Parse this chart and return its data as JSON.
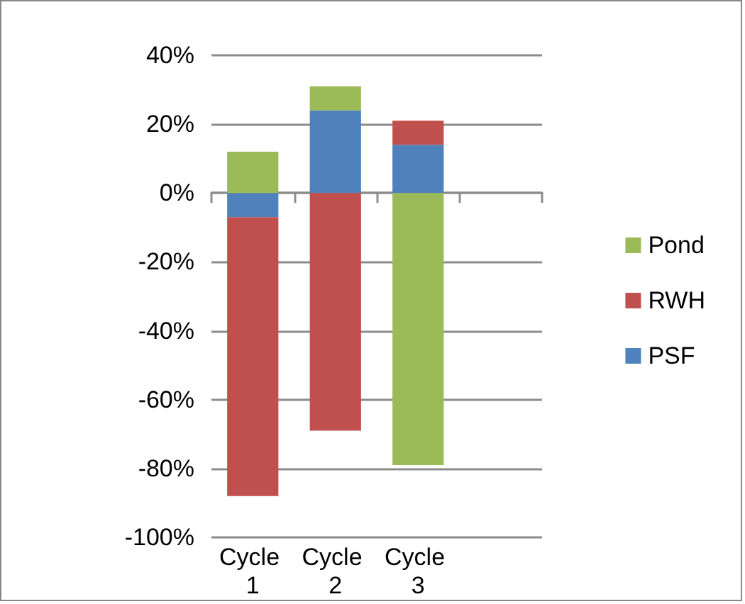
{
  "chart_data": {
    "type": "bar",
    "stacked": true,
    "categories": [
      "Cycle 1",
      "Cycle 2",
      "Cycle 3",
      null
    ],
    "series": [
      {
        "name": "PSF",
        "color": "#4f81bd",
        "values": [
          -7,
          24,
          14,
          null
        ]
      },
      {
        "name": "RWH",
        "color": "#c0504d",
        "values": [
          -81,
          -69,
          7,
          null
        ]
      },
      {
        "name": "Pond",
        "color": "#9bbb59",
        "values": [
          12,
          7,
          -79,
          null
        ]
      }
    ],
    "ylim": [
      -100,
      40
    ],
    "yticks": [
      {
        "value": -100,
        "label": "-100%"
      },
      {
        "value": -80,
        "label": "-80%"
      },
      {
        "value": -60,
        "label": "-60%"
      },
      {
        "value": -40,
        "label": "-40%"
      },
      {
        "value": -20,
        "label": "-20%"
      },
      {
        "value": 0,
        "label": "0%"
      },
      {
        "value": 20,
        "label": "20%"
      },
      {
        "value": 40,
        "label": "40%"
      }
    ],
    "grid": "y",
    "legend": "right"
  }
}
